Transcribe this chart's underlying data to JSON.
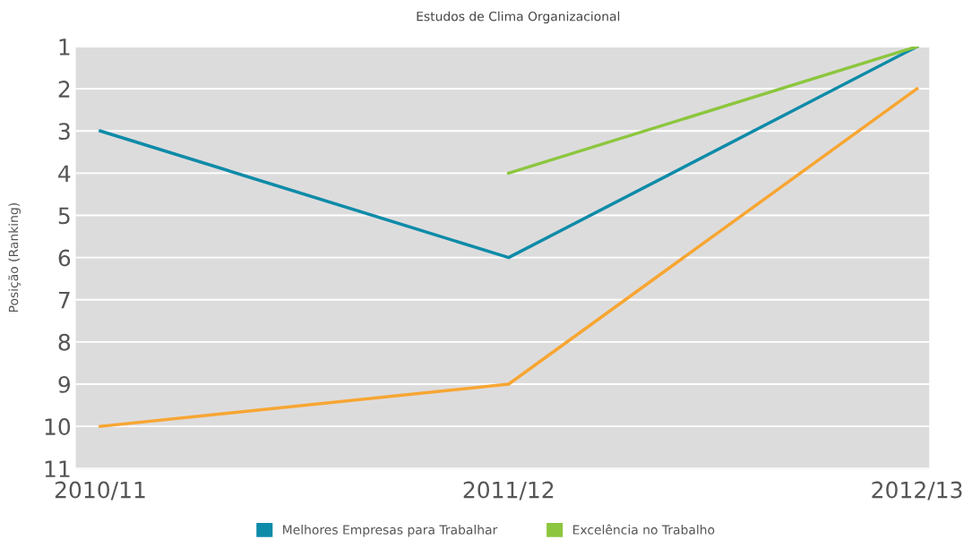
{
  "chart_data": {
    "type": "line",
    "title": "Estudos de Clima Organizacional",
    "ylabel": "Posição (Ranking)",
    "categories": [
      "2010/11",
      "2011/12",
      "2012/13"
    ],
    "series": [
      {
        "color": "#f7a632",
        "values": [
          10,
          9,
          2
        ]
      },
      {
        "name": "Melhores Empresas para Trabalhar",
        "color": "#0e8ba8",
        "values": [
          3,
          6,
          1
        ]
      },
      {
        "name": "Excelência no Trabalho",
        "color": "#8cc63f",
        "values": [
          null,
          4,
          1
        ]
      }
    ],
    "ylim": [
      11,
      1
    ],
    "yticks": [
      1,
      2,
      3,
      4,
      5,
      6,
      7,
      8,
      9,
      10,
      11
    ],
    "grid": "y",
    "legend": "bottom",
    "marker": "none",
    "line_style": "solid"
  }
}
